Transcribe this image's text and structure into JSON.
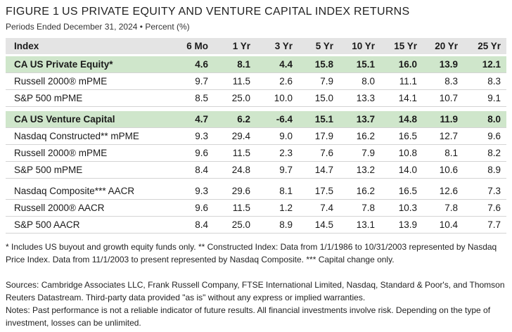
{
  "header": {
    "label": "FIGURE 1",
    "title": "US PRIVATE EQUITY AND VENTURE CAPITAL INDEX RETURNS",
    "subtitle": "Periods Ended December 31, 2024 • Percent (%)"
  },
  "table": {
    "columns": [
      "Index",
      "6 Mo",
      "1 Yr",
      "3 Yr",
      "5 Yr",
      "10 Yr",
      "15 Yr",
      "20 Yr",
      "25 Yr"
    ],
    "rows": [
      [
        "CA US Private Equity*",
        "4.6",
        "8.1",
        "4.4",
        "15.8",
        "15.1",
        "16.0",
        "13.9",
        "12.1"
      ],
      [
        "Russell 2000® mPME",
        "9.7",
        "11.5",
        "2.6",
        "7.9",
        "8.0",
        "11.1",
        "8.3",
        "8.3"
      ],
      [
        "S&P 500 mPME",
        "8.5",
        "25.0",
        "10.0",
        "15.0",
        "13.3",
        "14.1",
        "10.7",
        "9.1"
      ],
      [
        "CA US Venture Capital",
        "4.7",
        "6.2",
        "-6.4",
        "15.1",
        "13.7",
        "14.8",
        "11.9",
        "8.0"
      ],
      [
        "Nasdaq Constructed** mPME",
        "9.3",
        "29.4",
        "9.0",
        "17.9",
        "16.2",
        "16.5",
        "12.7",
        "9.6"
      ],
      [
        "Russell 2000® mPME",
        "9.6",
        "11.5",
        "2.3",
        "7.6",
        "7.9",
        "10.8",
        "8.1",
        "8.2"
      ],
      [
        "S&P 500 mPME",
        "8.4",
        "24.8",
        "9.7",
        "14.7",
        "13.2",
        "14.0",
        "10.6",
        "8.9"
      ],
      [
        "Nasdaq Composite*** AACR",
        "9.3",
        "29.6",
        "8.1",
        "17.5",
        "16.2",
        "16.5",
        "12.6",
        "7.3"
      ],
      [
        "Russell 2000® AACR",
        "9.6",
        "11.5",
        "1.2",
        "7.4",
        "7.8",
        "10.3",
        "7.8",
        "7.6"
      ],
      [
        "S&P 500 AACR",
        "8.4",
        "25.0",
        "8.9",
        "14.5",
        "13.1",
        "13.9",
        "10.4",
        "7.7"
      ]
    ]
  },
  "footnotes": [
    "* Includes US buyout and growth equity funds only. ** Constructed Index: Data from 1/1/1986 to 10/31/2003 represented by Nasdaq Price Index. Data from 11/1/2003 to present represented by Nasdaq Composite. *** Capital change only.",
    "Sources: Cambridge Associates LLC, Frank Russell Company, FTSE International Limited, Nasdaq, Standard & Poor's, and Thomson Reuters Datastream. Third-party data provided \"as is\" without any express or implied warranties.",
    "Notes: Past performance is not a reliable indicator of future results. All financial investments involve risk. Depending on the type of investment, losses can be unlimited."
  ]
}
